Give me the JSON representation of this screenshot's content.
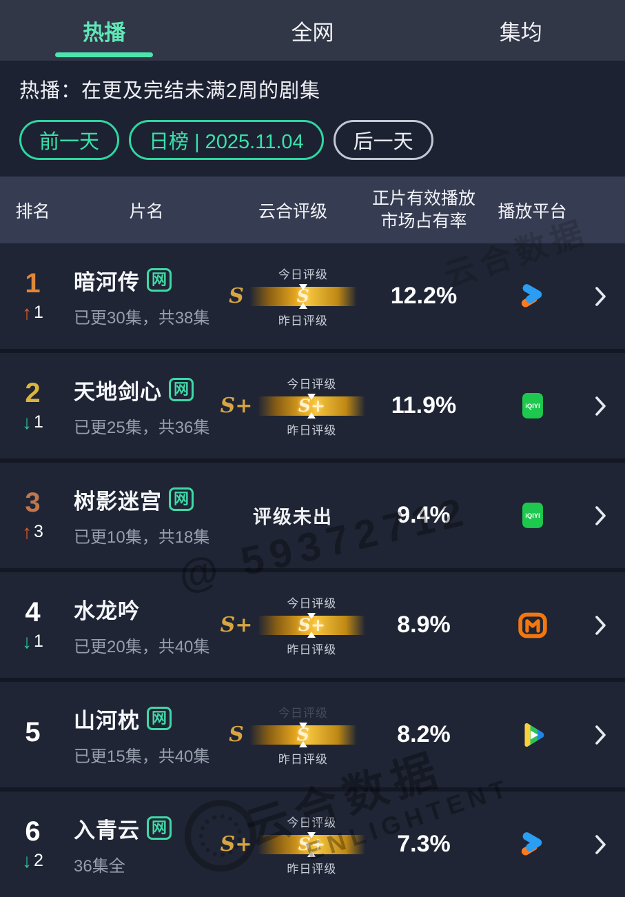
{
  "colors": {
    "accent": "#38e2a8",
    "gold_bar": "#f2b62e",
    "up_arrow": "#dd5f2a",
    "down_arrow": "#2cc795"
  },
  "tabs": [
    {
      "label": "热播",
      "active": true
    },
    {
      "label": "全网",
      "active": false
    },
    {
      "label": "集均",
      "active": false
    }
  ],
  "info": {
    "subtitle": "热播：在更及完结未满2周的剧集"
  },
  "date_nav": {
    "prev_label": "前一天",
    "current_label": "日榜 | 2025.11.04",
    "next_label": "后一天"
  },
  "table_headers": {
    "rank": "排名",
    "title": "片名",
    "rating": "云合评级",
    "share_line1": "正片有效播放",
    "share_line2": "市场占有率",
    "platform": "播放平台"
  },
  "rating_labels": {
    "today": "今日评级",
    "yesterday": "昨日评级",
    "not_out": "评级未出"
  },
  "web_badge_label": "网",
  "rows": [
    {
      "rank": "1",
      "rank_color": "#e0873a",
      "change_dir": "up",
      "change_value": "1",
      "title": "暗河传",
      "web_badge": true,
      "episodes": "已更30集，共38集",
      "rating": "S",
      "rating_available": true,
      "today_label_dim": false,
      "share": "12.2%",
      "platform": "youku"
    },
    {
      "rank": "2",
      "rank_color": "#dcb440",
      "change_dir": "down",
      "change_value": "1",
      "title": "天地剑心",
      "web_badge": true,
      "episodes": "已更25集，共36集",
      "rating": "S+",
      "rating_available": true,
      "today_label_dim": false,
      "share": "11.9%",
      "platform": "iqiyi"
    },
    {
      "rank": "3",
      "rank_color": "#c0764e",
      "change_dir": "up",
      "change_value": "3",
      "title": "树影迷宫",
      "web_badge": true,
      "episodes": "已更10集，共18集",
      "rating": "",
      "rating_available": false,
      "today_label_dim": false,
      "share": "9.4%",
      "platform": "iqiyi"
    },
    {
      "rank": "4",
      "rank_color": "#ffffff",
      "change_dir": "down",
      "change_value": "1",
      "title": "水龙吟",
      "web_badge": false,
      "episodes": "已更20集，共40集",
      "rating": "S+",
      "rating_available": true,
      "today_label_dim": false,
      "share": "8.9%",
      "platform": "mgtv"
    },
    {
      "rank": "5",
      "rank_color": "#ffffff",
      "change_dir": "none",
      "change_value": "",
      "title": "山河枕",
      "web_badge": true,
      "episodes": "已更15集，共40集",
      "rating": "S",
      "rating_available": true,
      "today_label_dim": true,
      "share": "8.2%",
      "platform": "tencent-video"
    },
    {
      "rank": "6",
      "rank_color": "#ffffff",
      "change_dir": "down",
      "change_value": "2",
      "title": "入青云",
      "web_badge": true,
      "episodes": "36集全",
      "rating": "S+",
      "rating_available": true,
      "today_label_dim": false,
      "share": "7.3%",
      "platform": "youku"
    }
  ],
  "watermarks": {
    "id_text": "@ 59372712",
    "brand_cn": "云合数据",
    "brand_en": "ENLIGHTENT"
  }
}
